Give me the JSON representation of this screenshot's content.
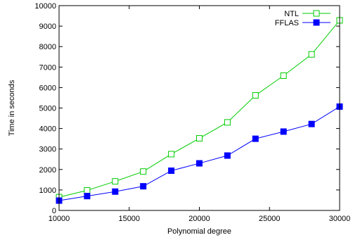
{
  "chart_data": {
    "type": "line",
    "xlabel": "Polynomial degree",
    "ylabel": "Time in seconds",
    "xlim": [
      10000,
      30000
    ],
    "ylim": [
      0,
      10000
    ],
    "x_ticks": [
      10000,
      15000,
      20000,
      25000,
      30000
    ],
    "y_ticks": [
      0,
      1000,
      2000,
      3000,
      4000,
      5000,
      6000,
      7000,
      8000,
      9000,
      10000
    ],
    "grid": false,
    "legend_position": "top-right",
    "x": [
      10000,
      12000,
      14000,
      16000,
      18000,
      20000,
      22000,
      24000,
      26000,
      28000,
      30000
    ],
    "series": [
      {
        "name": "NTL",
        "color": "#00cc00",
        "marker": "open-square",
        "values": [
          650,
          980,
          1420,
          1900,
          2750,
          3520,
          4300,
          5620,
          6580,
          7620,
          9280
        ]
      },
      {
        "name": "FFLAS",
        "color": "#0000ff",
        "marker": "filled-square",
        "values": [
          480,
          700,
          920,
          1180,
          1940,
          2300,
          2680,
          3500,
          3850,
          4220,
          5070
        ]
      }
    ]
  }
}
